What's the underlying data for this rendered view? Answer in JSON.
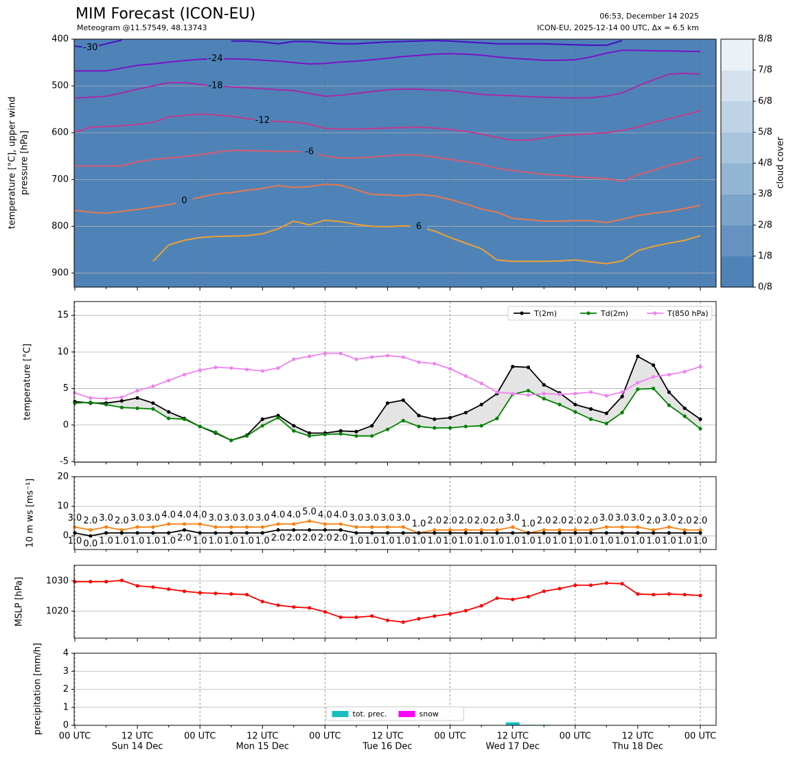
{
  "chart_data": [
    {
      "type": "contour",
      "title": "MIM Forecast (ICON-EU)",
      "subtitle": "Meteogram @11.57549, 48.13743",
      "annotations": [
        "06:53, December 14 2025",
        "ICON-EU, 2025-12-14 00 UTC, Δx = 6.5 km"
      ],
      "ylabel": [
        "temperature [°C], upper wind",
        "pressure [hPa]"
      ],
      "ylim": [
        930,
        400
      ],
      "yticks": [
        400,
        500,
        600,
        700,
        800,
        900
      ],
      "grid": true,
      "colorbar": {
        "label": "cloud cover",
        "ticks": [
          "0/8",
          "1/8",
          "2/8",
          "3/8",
          "4/8",
          "5/8",
          "6/8",
          "7/8",
          "8/8"
        ],
        "colors": [
          "#4f83b8",
          "#6592c0",
          "#7ca4ca",
          "#93b5d4",
          "#a9c4dd",
          "#bfd3e6",
          "#d5e2ee",
          "#eaf1f7"
        ]
      },
      "series": [
        {
          "name": "-30",
          "color": "#4a0cc4",
          "values": [
            415,
            418,
            410,
            402,
            null,
            null,
            null,
            null,
            null,
            null,
            404,
            404,
            406,
            410,
            405,
            405,
            408,
            410,
            410,
            408,
            406,
            405,
            404,
            403,
            404,
            406,
            408,
            410,
            410,
            410,
            410,
            411,
            412,
            413,
            413,
            403,
            null,
            null,
            null,
            null,
            null
          ]
        },
        {
          "name": "-24",
          "color": "#7b12c6",
          "values": [
            468,
            468,
            468,
            462,
            456,
            453,
            449,
            446,
            443,
            442,
            442,
            443,
            445,
            447,
            450,
            453,
            452,
            449,
            447,
            444,
            441,
            437,
            435,
            432,
            431,
            432,
            434,
            438,
            441,
            443,
            445,
            445,
            444,
            438,
            430,
            424,
            424,
            425,
            425,
            426,
            426
          ]
        },
        {
          "name": "-18",
          "color": "#a82aa8",
          "values": [
            526,
            524,
            522,
            515,
            507,
            500,
            493,
            493,
            497,
            500,
            502,
            504,
            506,
            508,
            510,
            516,
            522,
            520,
            516,
            512,
            508,
            507,
            507,
            509,
            510,
            514,
            518,
            520,
            521,
            523,
            524,
            525,
            526,
            525,
            522,
            515,
            500,
            487,
            475,
            473,
            475
          ]
        },
        {
          "name": "-12",
          "color": "#c43a8c",
          "values": [
            599,
            588,
            587,
            585,
            582,
            578,
            566,
            563,
            560,
            562,
            565,
            570,
            574,
            576,
            577,
            582,
            591,
            592,
            592,
            591,
            590,
            589,
            588,
            590,
            593,
            597,
            603,
            610,
            616,
            616,
            611,
            606,
            604,
            602,
            600,
            595,
            588,
            578,
            570,
            562,
            553
          ]
        },
        {
          "name": "-6",
          "color": "#d85a6e",
          "values": [
            671,
            671,
            671,
            671,
            662,
            657,
            654,
            651,
            647,
            642,
            638,
            638,
            639,
            640,
            640,
            641,
            650,
            654,
            654,
            652,
            649,
            647,
            648,
            652,
            657,
            662,
            668,
            676,
            681,
            685,
            689,
            691,
            694,
            696,
            698,
            704,
            690,
            680,
            670,
            662,
            652
          ]
        },
        {
          "name": "0",
          "color": "#e8784a",
          "values": [
            766,
            770,
            772,
            768,
            764,
            759,
            754,
            746,
            738,
            731,
            728,
            723,
            719,
            713,
            717,
            715,
            710,
            712,
            722,
            732,
            733,
            735,
            732,
            735,
            743,
            752,
            763,
            770,
            783,
            786,
            789,
            789,
            788,
            788,
            792,
            785,
            777,
            772,
            768,
            762,
            755
          ]
        },
        {
          "name": "6",
          "color": "#f0a030",
          "values": [
            null,
            null,
            null,
            null,
            null,
            875,
            840,
            830,
            824,
            822,
            821,
            820,
            816,
            805,
            789,
            797,
            787,
            790,
            796,
            800,
            801,
            799,
            801,
            810,
            824,
            836,
            848,
            872,
            875,
            875,
            875,
            874,
            872,
            876,
            880,
            874,
            852,
            843,
            836,
            830,
            820
          ]
        }
      ]
    },
    {
      "type": "line",
      "ylabel": "temperature [°C]",
      "ylim": [
        -5.1,
        16.9
      ],
      "yticks": [
        -5,
        0,
        5,
        10,
        15
      ],
      "grid": true,
      "legend": "upper right",
      "fill_between_color": "#e4e4e4",
      "series": [
        {
          "name": "T(2m)",
          "color": "#000000",
          "values": [
            3.2,
            3.0,
            3.0,
            3.3,
            3.7,
            3.0,
            1.8,
            0.9,
            -0.2,
            -1.1,
            -2.1,
            -1.4,
            0.8,
            1.3,
            -0.1,
            -1.1,
            -1.1,
            -0.8,
            -0.9,
            -0.1,
            3.0,
            3.4,
            1.3,
            0.8,
            1.0,
            1.7,
            2.8,
            4.3,
            8.0,
            7.9,
            5.5,
            4.4,
            2.8,
            2.2,
            1.6,
            3.9,
            9.4,
            8.2,
            4.5,
            2.3,
            0.8
          ]
        },
        {
          "name": "Td(2m)",
          "color": "#008000",
          "values": [
            3.0,
            3.1,
            2.8,
            2.4,
            2.3,
            2.2,
            0.9,
            0.8,
            -0.2,
            -1.0,
            -2.1,
            -1.5,
            -0.1,
            1.0,
            -0.8,
            -1.5,
            -1.3,
            -1.2,
            -1.5,
            -1.5,
            -0.6,
            0.6,
            -0.2,
            -0.4,
            -0.4,
            -0.2,
            -0.1,
            0.9,
            4.2,
            4.7,
            3.6,
            2.8,
            1.8,
            0.8,
            0.2,
            1.7,
            4.9,
            5.0,
            2.7,
            1.2,
            -0.5
          ]
        },
        {
          "name": "T(850 hPa)",
          "color": "#ee82ee",
          "values": [
            4.4,
            3.7,
            3.6,
            3.8,
            4.7,
            5.3,
            6.1,
            6.9,
            7.5,
            7.9,
            7.8,
            7.6,
            7.4,
            7.8,
            9.0,
            9.4,
            9.8,
            9.8,
            9.0,
            9.3,
            9.5,
            9.3,
            8.6,
            8.4,
            7.7,
            6.7,
            5.7,
            4.5,
            4.3,
            4.1,
            4.3,
            4.2,
            4.3,
            4.5,
            4.0,
            4.5,
            5.8,
            6.6,
            6.9,
            7.3,
            8.0
          ]
        }
      ]
    },
    {
      "type": "line",
      "ylabel": "10 m ws [ms⁻¹]",
      "ylim": [
        -4.6,
        20
      ],
      "yticks": [
        0,
        10,
        20
      ],
      "grid": true,
      "series": [
        {
          "color": "#ff7f0e",
          "values": [
            3,
            2,
            3,
            2,
            3,
            3,
            4,
            4,
            4,
            3,
            3,
            3,
            3,
            4,
            4,
            5,
            4,
            4,
            3,
            3,
            3,
            3,
            1,
            2,
            2,
            2,
            2,
            2,
            3,
            1,
            2,
            2,
            2,
            2,
            3,
            3,
            3,
            2,
            3,
            2,
            2
          ],
          "value_labels": [
            "3.0",
            "2.0",
            "3.0",
            "2.0",
            "3.0",
            "3.0",
            "4.0",
            "4.0",
            "4.0",
            "3.0",
            "3.0",
            "3.0",
            "3.0",
            "4.0",
            "4.0",
            "5.0",
            "4.0",
            "4.0",
            "3.0",
            "3.0",
            "3.0",
            "3.0",
            "1.0",
            "2.0",
            "2.0",
            "2.0",
            "2.0",
            "2.0",
            "3.0",
            "1.0",
            "2.0",
            "2.0",
            "2.0",
            "2.0",
            "3.0",
            "3.0",
            "3.0",
            "2.0",
            "3.0",
            "2.0",
            "2.0"
          ]
        },
        {
          "color": "#000000",
          "values": [
            1,
            0,
            1,
            1,
            1,
            1,
            1,
            2,
            1,
            1,
            1,
            1,
            1,
            2,
            2,
            2,
            2,
            2,
            1,
            1,
            1,
            1,
            1,
            1,
            1,
            1,
            1,
            1,
            1,
            1,
            1,
            1,
            1,
            1,
            1,
            1,
            1,
            1,
            1,
            1,
            1
          ],
          "value_labels": [
            "1.0",
            "0.0",
            "1.0",
            "1.0",
            "1.0",
            "1.0",
            "1.0",
            "2.0",
            "1.0",
            "1.0",
            "1.0",
            "1.0",
            "1.0",
            "2.0",
            "2.0",
            "2.0",
            "2.0",
            "2.0",
            "1.0",
            "1.0",
            "1.0",
            "1.0",
            "1.0",
            "1.0",
            "1.0",
            "1.0",
            "1.0",
            "1.0",
            "1.0",
            "1.0",
            "1.0",
            "1.0",
            "1.0",
            "1.0",
            "1.0",
            "1.0",
            "1.0",
            "1.0",
            "1.0",
            "1.0",
            "1.0"
          ]
        }
      ]
    },
    {
      "type": "line",
      "ylabel": "MSLP [hPa]",
      "ylim": [
        1011.1,
        1035.2
      ],
      "yticks": [
        1020,
        1030
      ],
      "grid": true,
      "series": [
        {
          "color": "#ff0000",
          "values": [
            1029.8,
            1029.8,
            1029.8,
            1030.2,
            1028.4,
            1028.0,
            1027.3,
            1026.6,
            1026.1,
            1025.9,
            1025.7,
            1025.5,
            1023.2,
            1022.0,
            1021.4,
            1021.1,
            1019.8,
            1018.0,
            1018.0,
            1018.4,
            1017.0,
            1016.4,
            1017.5,
            1018.4,
            1019.1,
            1020.2,
            1021.8,
            1024.3,
            1023.9,
            1024.8,
            1026.6,
            1027.5,
            1028.6,
            1028.6,
            1029.3,
            1029.1,
            1025.7,
            1025.5,
            1025.7,
            1025.5,
            1025.2
          ]
        }
      ]
    },
    {
      "type": "bar",
      "ylabel": "precipitation [mm/h]",
      "ylim": [
        0,
        4
      ],
      "yticks": [
        0,
        1,
        2,
        3,
        4
      ],
      "grid": true,
      "legend": "lower center",
      "categories": [
        "00 UTC",
        null,
        null,
        null,
        "12 UTC",
        null,
        null,
        null,
        "00 UTC",
        null,
        null,
        null,
        "12 UTC",
        null,
        null,
        null,
        "00 UTC",
        null,
        null,
        null,
        "12 UTC",
        null,
        null,
        null,
        "00 UTC",
        null,
        null,
        null,
        "12 UTC",
        null,
        null,
        null,
        "00 UTC",
        null,
        null,
        null,
        "12 UTC",
        null,
        null,
        null,
        "00 UTC"
      ],
      "dates": [
        null,
        null,
        null,
        null,
        "Sun 14 Dec",
        null,
        null,
        null,
        null,
        null,
        null,
        null,
        "Mon 15 Dec",
        null,
        null,
        null,
        null,
        null,
        null,
        null,
        "Tue 16 Dec",
        null,
        null,
        null,
        null,
        null,
        null,
        null,
        "Wed 17 Dec",
        null,
        null,
        null,
        null,
        null,
        null,
        null,
        "Thu 18 Dec",
        null,
        null,
        null,
        null
      ],
      "series": [
        {
          "name": "tot. prec.",
          "color": "#17bfbf",
          "values": [
            0,
            0,
            0,
            0,
            0,
            0,
            0,
            0,
            0,
            0,
            0,
            0,
            0,
            0,
            0,
            0,
            0,
            0,
            0,
            0,
            0,
            0,
            0,
            0,
            0,
            0,
            0,
            0,
            0.17,
            0.03,
            0.03,
            0,
            0,
            0,
            0,
            0,
            0,
            0,
            0,
            0,
            0
          ]
        },
        {
          "name": "snow",
          "color": "#ff00ff",
          "values": [
            0,
            0,
            0,
            0,
            0,
            0,
            0,
            0,
            0,
            0,
            0,
            0,
            0,
            0,
            0,
            0,
            0,
            0,
            0,
            0,
            0,
            0,
            0,
            0,
            0,
            0,
            0,
            0,
            0,
            0,
            0,
            0,
            0,
            0,
            0,
            0,
            0,
            0,
            0,
            0,
            0
          ]
        }
      ]
    }
  ]
}
